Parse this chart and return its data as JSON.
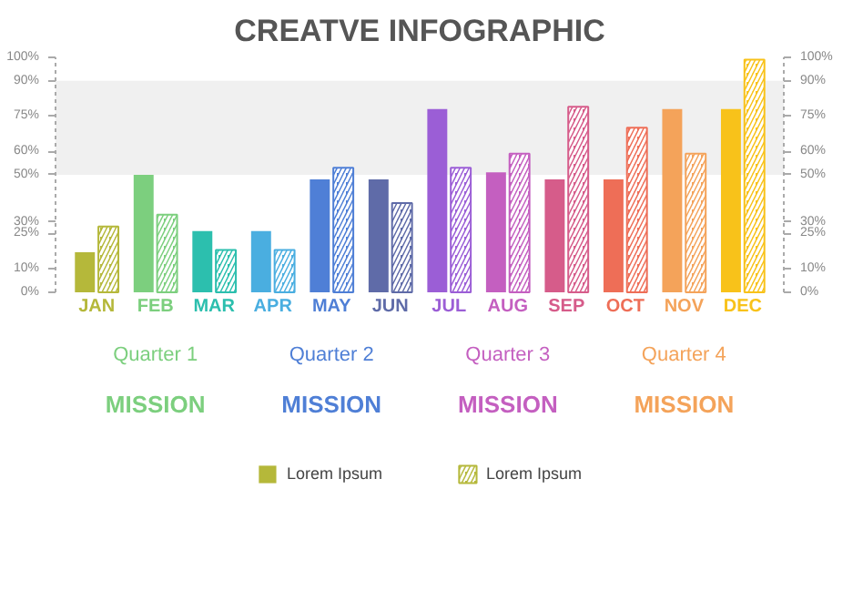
{
  "chart_data": {
    "type": "bar",
    "title": "CREATVE INFOGRAPHIC",
    "categories": [
      "JAN",
      "FEB",
      "MAR",
      "APR",
      "MAY",
      "JUN",
      "JUL",
      "AUG",
      "SEP",
      "OCT",
      "NOV",
      "DEC"
    ],
    "series": [
      {
        "name": "Lorem Ipsum",
        "colors": [
          "#b5b83a",
          "#7ccf7e",
          "#2cbfae",
          "#4aaee0",
          "#4f7fd6",
          "#5f6ba8",
          "#9b5ed6",
          "#c45fc0",
          "#d65c8a",
          "#ee6e57",
          "#f4a35a",
          "#f8c21a"
        ],
        "values": [
          17,
          50,
          26,
          26,
          48,
          48,
          78,
          51,
          48,
          48,
          78,
          78
        ]
      },
      {
        "name": "Lorem Ipsum",
        "colors": [
          "#b5b83a",
          "#7ccf7e",
          "#2cbfae",
          "#4aaee0",
          "#4f7fd6",
          "#5f6ba8",
          "#9b5ed6",
          "#c45fc0",
          "#d65c8a",
          "#ee6e57",
          "#f4a35a",
          "#f8c21a"
        ],
        "values": [
          28,
          33,
          18,
          18,
          53,
          38,
          53,
          59,
          79,
          70,
          59,
          99
        ]
      }
    ],
    "ylim": [
      0,
      100
    ],
    "yticks": [
      {
        "value": 0,
        "label": "0%"
      },
      {
        "value": 10,
        "label": "10%"
      },
      {
        "value": 25,
        "label": "25%"
      },
      {
        "value": 30,
        "label": "30%"
      },
      {
        "value": 50,
        "label": "50%"
      },
      {
        "value": 60,
        "label": "60%"
      },
      {
        "value": 75,
        "label": "75%"
      },
      {
        "value": 90,
        "label": "90%"
      },
      {
        "value": 100,
        "label": "100%"
      }
    ],
    "y2lim": [
      0,
      100
    ],
    "y2ticks": [
      {
        "value": 0,
        "label": "0%"
      },
      {
        "value": 10,
        "label": "10%"
      },
      {
        "value": 25,
        "label": "25%"
      },
      {
        "value": 30,
        "label": "30%"
      },
      {
        "value": 50,
        "label": "50%"
      },
      {
        "value": 60,
        "label": "60%"
      },
      {
        "value": 75,
        "label": "75%"
      },
      {
        "value": 90,
        "label": "90%"
      },
      {
        "value": 100,
        "label": "100%"
      }
    ],
    "bands": [
      {
        "axis": "y",
        "from": 50,
        "to": 90,
        "color": "#f0f0f0"
      }
    ],
    "annotations": [
      "Quarter 1",
      "Quarter 2",
      "Quarter 3",
      "Quarter 4",
      "MISSION",
      "MISSION",
      "MISSION",
      "MISSION"
    ],
    "grid": false,
    "legend": "bottom"
  }
}
